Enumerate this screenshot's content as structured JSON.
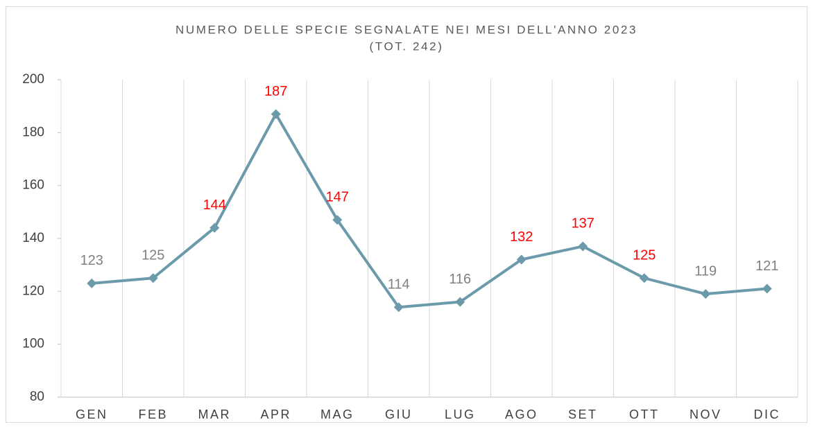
{
  "chart_data": {
    "type": "line",
    "title": "NUMERO DELLE SPECIE SEGNALATE NEI MESI DELL'ANNO 2023",
    "subtitle": "(TOT. 242)",
    "categories": [
      "GEN",
      "FEB",
      "MAR",
      "APR",
      "MAG",
      "GIU",
      "LUG",
      "AGO",
      "SET",
      "OTT",
      "NOV",
      "DIC"
    ],
    "series": [
      {
        "name": "Specie",
        "color": "#6b9aaa",
        "values": [
          123,
          125,
          144,
          187,
          147,
          114,
          116,
          132,
          137,
          125,
          119,
          121
        ],
        "value_label_colors": [
          "#808080",
          "#808080",
          "#ff0000",
          "#ff0000",
          "#ff0000",
          "#808080",
          "#808080",
          "#ff0000",
          "#ff0000",
          "#ff0000",
          "#808080",
          "#808080"
        ]
      }
    ],
    "ylim": [
      80,
      200
    ],
    "yticks": [
      80,
      100,
      120,
      140,
      160,
      180,
      200
    ],
    "grid": true
  }
}
